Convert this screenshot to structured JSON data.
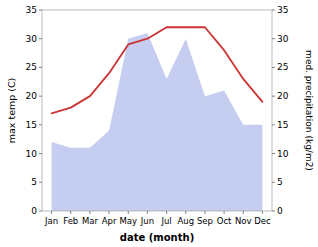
{
  "chart_data": {
    "type": "line",
    "xlabel": "date (month)",
    "ylabel": "max temp (C)",
    "y2label": "med. precipitation (kg/m2)",
    "categories": [
      "Jan",
      "Feb",
      "Mar",
      "Apr",
      "May",
      "Jun",
      "Jul",
      "Aug",
      "Sep",
      "Oct",
      "Nov",
      "Dec"
    ],
    "series": [
      {
        "type": "line",
        "color": "#cc3333",
        "values": [
          17,
          18,
          20,
          24,
          29,
          30,
          32,
          32,
          32,
          28,
          23,
          19
        ]
      },
      {
        "type": "area",
        "color": "#c5cef0",
        "axis": "y2",
        "values": [
          12,
          11,
          11,
          14,
          30,
          31,
          23,
          30,
          20,
          21,
          15,
          15
        ]
      }
    ],
    "ylim": [
      0,
      35
    ],
    "yticks": [
      0,
      5,
      10,
      15,
      20,
      25,
      30,
      35
    ],
    "y2lim": [
      0,
      35
    ],
    "y2ticks": [
      0,
      5,
      10,
      15,
      20,
      25,
      30,
      35
    ]
  }
}
